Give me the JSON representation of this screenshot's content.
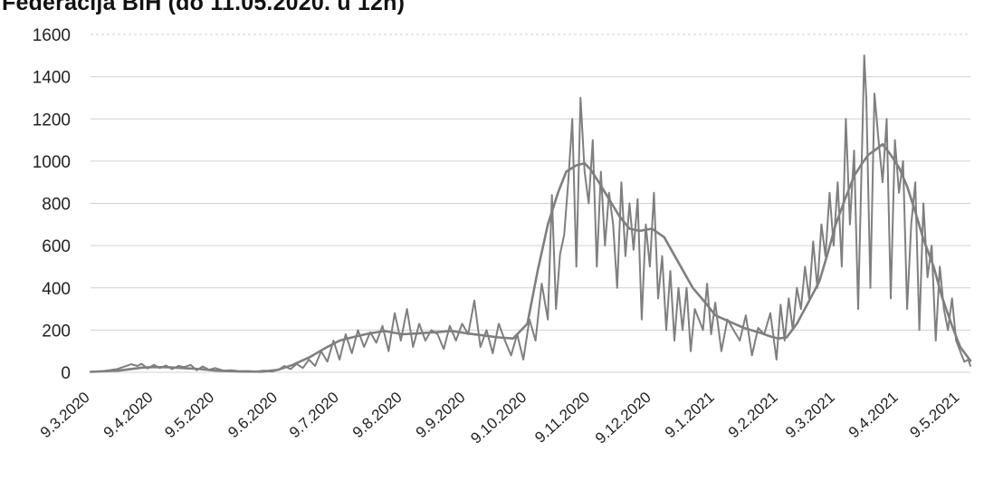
{
  "chart_data": {
    "type": "line",
    "title": "Federacija BiH (do 11.05.2020. u 12h)",
    "xlabel": "",
    "ylabel": "",
    "ylim": [
      0,
      1600
    ],
    "yticks": [
      0,
      200,
      400,
      600,
      800,
      1000,
      1200,
      1400,
      1600
    ],
    "x_tick_labels": [
      "9.3.2020",
      "9.4.2020",
      "9.5.2020",
      "9.6.2020",
      "9.7.2020",
      "9.8.2020",
      "9.9.2020",
      "9.10.2020",
      "9.11.2020",
      "9.12.2020",
      "9.1.2021",
      "9.2.2021",
      "9.3.2021",
      "9.4.2021",
      "9.5.2021"
    ],
    "x_range": [
      "2020-03-09",
      "2021-05-14"
    ],
    "grid": true,
    "colors": {
      "line": "#7f7f7f",
      "grid": "#d0d0d0",
      "text": "#222222"
    },
    "series": [
      {
        "x": [
          "2020-03-09",
          "2020-03-23",
          "2020-04-03",
          "2020-04-09",
          "2020-04-16",
          "2020-04-23",
          "2020-05-02",
          "2020-05-09",
          "2020-05-20",
          "2020-06-01",
          "2020-06-09",
          "2020-06-16",
          "2020-06-24",
          "2020-07-02",
          "2020-07-09",
          "2020-07-17",
          "2020-07-24",
          "2020-07-31",
          "2020-08-09",
          "2020-08-17",
          "2020-08-25",
          "2020-09-02",
          "2020-09-09",
          "2020-09-17",
          "2020-09-25",
          "2020-10-02",
          "2020-10-09",
          "2020-10-14",
          "2020-10-19",
          "2020-10-24",
          "2020-10-28",
          "2020-11-02",
          "2020-11-06",
          "2020-11-09",
          "2020-11-13",
          "2020-11-18",
          "2020-11-23",
          "2020-11-28",
          "2020-12-03",
          "2020-12-09",
          "2020-12-15",
          "2020-12-22",
          "2020-12-29",
          "2021-01-05",
          "2021-01-09",
          "2021-01-16",
          "2021-01-23",
          "2021-01-30",
          "2021-02-05",
          "2021-02-09",
          "2021-02-13",
          "2021-02-18",
          "2021-02-23",
          "2021-03-01",
          "2021-03-05",
          "2021-03-09",
          "2021-03-14",
          "2021-03-18",
          "2021-03-22",
          "2021-03-25",
          "2021-03-28",
          "2021-04-01",
          "2021-04-05",
          "2021-04-09",
          "2021-04-13",
          "2021-04-17",
          "2021-04-21",
          "2021-04-26",
          "2021-04-30",
          "2021-05-05",
          "2021-05-09",
          "2021-05-14"
        ],
        "values": [
          2,
          8,
          22,
          25,
          24,
          20,
          15,
          8,
          4,
          3,
          12,
          35,
          70,
          115,
          150,
          170,
          185,
          195,
          180,
          185,
          190,
          195,
          185,
          175,
          165,
          160,
          230,
          480,
          700,
          850,
          950,
          980,
          990,
          960,
          900,
          820,
          740,
          680,
          670,
          680,
          640,
          520,
          400,
          320,
          270,
          240,
          210,
          190,
          170,
          160,
          165,
          230,
          320,
          430,
          560,
          700,
          830,
          930,
          990,
          1030,
          1050,
          1080,
          1030,
          970,
          880,
          760,
          630,
          500,
          360,
          220,
          120,
          55
        ]
      },
      {
        "x": [
          "2020-03-09",
          "2020-03-15",
          "2020-03-22",
          "2020-03-29",
          "2020-04-01",
          "2020-04-03",
          "2020-04-06",
          "2020-04-09",
          "2020-04-12",
          "2020-04-15",
          "2020-04-18",
          "2020-04-21",
          "2020-04-24",
          "2020-04-27",
          "2020-04-30",
          "2020-05-03",
          "2020-05-06",
          "2020-05-09",
          "2020-05-13",
          "2020-05-17",
          "2020-05-21",
          "2020-05-25",
          "2020-05-29",
          "2020-06-02",
          "2020-06-06",
          "2020-06-09",
          "2020-06-12",
          "2020-06-15",
          "2020-06-18",
          "2020-06-21",
          "2020-06-24",
          "2020-06-27",
          "2020-06-30",
          "2020-07-03",
          "2020-07-06",
          "2020-07-09",
          "2020-07-12",
          "2020-07-15",
          "2020-07-18",
          "2020-07-21",
          "2020-07-24",
          "2020-07-27",
          "2020-07-30",
          "2020-08-02",
          "2020-08-05",
          "2020-08-08",
          "2020-08-11",
          "2020-08-14",
          "2020-08-17",
          "2020-08-20",
          "2020-08-23",
          "2020-08-26",
          "2020-08-29",
          "2020-09-01",
          "2020-09-04",
          "2020-09-07",
          "2020-09-10",
          "2020-09-13",
          "2020-09-16",
          "2020-09-19",
          "2020-09-22",
          "2020-09-25",
          "2020-09-28",
          "2020-10-01",
          "2020-10-04",
          "2020-10-07",
          "2020-10-10",
          "2020-10-13",
          "2020-10-16",
          "2020-10-19",
          "2020-10-21",
          "2020-10-23",
          "2020-10-25",
          "2020-10-27",
          "2020-10-29",
          "2020-10-31",
          "2020-11-02",
          "2020-11-04",
          "2020-11-06",
          "2020-11-08",
          "2020-11-10",
          "2020-11-12",
          "2020-11-14",
          "2020-11-16",
          "2020-11-18",
          "2020-11-20",
          "2020-11-22",
          "2020-11-24",
          "2020-11-26",
          "2020-11-28",
          "2020-11-30",
          "2020-12-02",
          "2020-12-04",
          "2020-12-06",
          "2020-12-08",
          "2020-12-10",
          "2020-12-12",
          "2020-12-14",
          "2020-12-16",
          "2020-12-18",
          "2020-12-20",
          "2020-12-22",
          "2020-12-24",
          "2020-12-26",
          "2020-12-28",
          "2020-12-30",
          "2021-01-01",
          "2021-01-03",
          "2021-01-05",
          "2021-01-07",
          "2021-01-09",
          "2021-01-12",
          "2021-01-15",
          "2021-01-18",
          "2021-01-21",
          "2021-01-24",
          "2021-01-27",
          "2021-01-30",
          "2021-02-02",
          "2021-02-05",
          "2021-02-08",
          "2021-02-10",
          "2021-02-12",
          "2021-02-14",
          "2021-02-16",
          "2021-02-18",
          "2021-02-20",
          "2021-02-22",
          "2021-02-24",
          "2021-02-26",
          "2021-02-28",
          "2021-03-02",
          "2021-03-04",
          "2021-03-06",
          "2021-03-08",
          "2021-03-10",
          "2021-03-12",
          "2021-03-14",
          "2021-03-16",
          "2021-03-18",
          "2021-03-20",
          "2021-03-22",
          "2021-03-23",
          "2021-03-24",
          "2021-03-26",
          "2021-03-28",
          "2021-03-30",
          "2021-04-01",
          "2021-04-03",
          "2021-04-05",
          "2021-04-07",
          "2021-04-09",
          "2021-04-11",
          "2021-04-13",
          "2021-04-15",
          "2021-04-17",
          "2021-04-19",
          "2021-04-21",
          "2021-04-23",
          "2021-04-25",
          "2021-04-27",
          "2021-04-29",
          "2021-05-01",
          "2021-05-03",
          "2021-05-05",
          "2021-05-07",
          "2021-05-09",
          "2021-05-11",
          "2021-05-13",
          "2021-05-14"
        ],
        "values": [
          2,
          5,
          15,
          38,
          30,
          40,
          18,
          35,
          20,
          32,
          15,
          30,
          25,
          35,
          10,
          28,
          12,
          20,
          8,
          10,
          5,
          6,
          3,
          8,
          4,
          12,
          30,
          15,
          40,
          20,
          60,
          30,
          100,
          50,
          150,
          60,
          180,
          90,
          200,
          120,
          190,
          140,
          220,
          100,
          280,
          150,
          300,
          120,
          230,
          150,
          200,
          180,
          110,
          220,
          150,
          230,
          180,
          340,
          120,
          200,
          90,
          230,
          150,
          80,
          180,
          60,
          250,
          150,
          420,
          250,
          840,
          300,
          560,
          650,
          900,
          1200,
          500,
          1300,
          950,
          800,
          1100,
          500,
          950,
          600,
          850,
          700,
          400,
          900,
          550,
          800,
          580,
          820,
          250,
          700,
          500,
          850,
          350,
          550,
          200,
          480,
          150,
          400,
          200,
          400,
          100,
          300,
          250,
          200,
          420,
          180,
          330,
          100,
          250,
          200,
          150,
          270,
          80,
          210,
          180,
          280,
          60,
          320,
          150,
          350,
          200,
          400,
          300,
          500,
          350,
          620,
          400,
          700,
          550,
          850,
          600,
          900,
          500,
          1200,
          700,
          1050,
          300,
          1100,
          1500,
          1300,
          400,
          1320,
          1100,
          900,
          1200,
          350,
          1100,
          850,
          1000,
          300,
          700,
          900,
          200,
          800,
          450,
          600,
          150,
          500,
          300,
          200,
          350,
          150,
          100,
          50,
          60,
          30
        ]
      }
    ]
  }
}
